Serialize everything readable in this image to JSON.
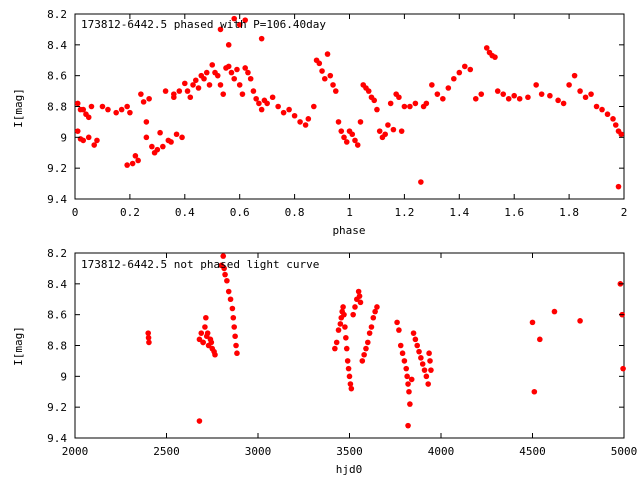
{
  "marker_color": "#ff0000",
  "chart_data": [
    {
      "type": "scatter",
      "title": "173812-6442.5 phased with P=106.40day",
      "xlabel": "phase",
      "ylabel": "I[mag]",
      "xlim": [
        0,
        2
      ],
      "ylim": [
        9.4,
        8.2
      ],
      "y_inverted": true,
      "xticks": [
        "0",
        "0.2",
        "0.4",
        "0.6",
        "0.8",
        "1",
        "1.2",
        "1.4",
        "1.6",
        "1.8",
        "2"
      ],
      "yticks": [
        "8.2",
        "8.4",
        "8.6",
        "8.8",
        "9",
        "9.2",
        "9.4"
      ],
      "grid": false,
      "marker": "filled-circle",
      "series": [
        {
          "points": [
            [
              0.01,
              8.78
            ],
            [
              0.02,
              8.82
            ],
            [
              0.01,
              8.96
            ],
            [
              0.02,
              9.01
            ],
            [
              0.03,
              8.82
            ],
            [
              0.04,
              8.85
            ],
            [
              0.03,
              9.02
            ],
            [
              0.05,
              9.0
            ],
            [
              0.06,
              8.8
            ],
            [
              0.07,
              9.05
            ],
            [
              0.08,
              9.02
            ],
            [
              0.05,
              8.87
            ],
            [
              0.1,
              8.8
            ],
            [
              0.12,
              8.82
            ],
            [
              0.15,
              8.84
            ],
            [
              0.17,
              8.82
            ],
            [
              0.19,
              8.8
            ],
            [
              0.2,
              8.84
            ],
            [
              0.19,
              9.18
            ],
            [
              0.21,
              9.17
            ],
            [
              0.22,
              9.12
            ],
            [
              0.23,
              9.15
            ],
            [
              0.25,
              8.77
            ],
            [
              0.24,
              8.72
            ],
            [
              0.26,
              8.9
            ],
            [
              0.26,
              9.0
            ],
            [
              0.27,
              8.75
            ],
            [
              0.28,
              9.06
            ],
            [
              0.29,
              9.1
            ],
            [
              0.3,
              9.08
            ],
            [
              0.31,
              8.97
            ],
            [
              0.32,
              9.06
            ],
            [
              0.33,
              8.7
            ],
            [
              0.34,
              9.02
            ],
            [
              0.35,
              9.03
            ],
            [
              0.36,
              8.74
            ],
            [
              0.37,
              8.98
            ],
            [
              0.38,
              8.7
            ],
            [
              0.39,
              9.0
            ],
            [
              0.4,
              8.65
            ],
            [
              0.41,
              8.7
            ],
            [
              0.42,
              8.74
            ],
            [
              0.43,
              8.66
            ],
            [
              0.44,
              8.63
            ],
            [
              0.45,
              8.68
            ],
            [
              0.46,
              8.6
            ],
            [
              0.47,
              8.62
            ],
            [
              0.48,
              8.58
            ],
            [
              0.49,
              8.66
            ],
            [
              0.5,
              8.53
            ],
            [
              0.51,
              8.58
            ],
            [
              0.52,
              8.6
            ],
            [
              0.53,
              8.66
            ],
            [
              0.54,
              8.72
            ],
            [
              0.55,
              8.55
            ],
            [
              0.56,
              8.54
            ],
            [
              0.57,
              8.58
            ],
            [
              0.58,
              8.62
            ],
            [
              0.59,
              8.56
            ],
            [
              0.6,
              8.66
            ],
            [
              0.61,
              8.72
            ],
            [
              0.62,
              8.55
            ],
            [
              0.63,
              8.58
            ],
            [
              0.64,
              8.62
            ],
            [
              0.65,
              8.7
            ],
            [
              0.66,
              8.75
            ],
            [
              0.67,
              8.78
            ],
            [
              0.68,
              8.82
            ],
            [
              0.69,
              8.76
            ],
            [
              0.7,
              8.78
            ],
            [
              0.72,
              8.74
            ],
            [
              0.74,
              8.8
            ],
            [
              0.76,
              8.84
            ],
            [
              0.78,
              8.82
            ],
            [
              0.8,
              8.86
            ],
            [
              0.82,
              8.9
            ],
            [
              0.84,
              8.92
            ],
            [
              0.85,
              8.88
            ],
            [
              0.87,
              8.8
            ],
            [
              0.88,
              8.5
            ],
            [
              0.89,
              8.52
            ],
            [
              0.9,
              8.57
            ],
            [
              0.91,
              8.62
            ],
            [
              0.92,
              8.46
            ],
            [
              0.93,
              8.6
            ],
            [
              0.94,
              8.66
            ],
            [
              0.95,
              8.7
            ],
            [
              0.96,
              8.9
            ],
            [
              0.97,
              8.96
            ],
            [
              0.98,
              9.0
            ],
            [
              0.99,
              9.03
            ],
            [
              1.0,
              8.96
            ],
            [
              1.01,
              8.98
            ],
            [
              1.02,
              9.02
            ],
            [
              1.03,
              9.05
            ],
            [
              1.04,
              8.9
            ],
            [
              1.05,
              8.66
            ],
            [
              1.06,
              8.68
            ],
            [
              1.07,
              8.7
            ],
            [
              1.08,
              8.74
            ],
            [
              1.09,
              8.76
            ],
            [
              1.1,
              8.82
            ],
            [
              1.11,
              8.96
            ],
            [
              1.12,
              9.0
            ],
            [
              1.13,
              8.98
            ],
            [
              1.14,
              8.92
            ],
            [
              1.15,
              8.78
            ],
            [
              1.16,
              8.95
            ],
            [
              1.17,
              8.72
            ],
            [
              1.18,
              8.74
            ],
            [
              1.19,
              8.96
            ],
            [
              1.2,
              8.8
            ],
            [
              1.22,
              8.8
            ],
            [
              1.24,
              8.78
            ],
            [
              1.26,
              9.29
            ],
            [
              1.27,
              8.8
            ],
            [
              1.28,
              8.78
            ],
            [
              1.3,
              8.66
            ],
            [
              1.32,
              8.72
            ],
            [
              1.34,
              8.75
            ],
            [
              1.36,
              8.68
            ],
            [
              1.38,
              8.62
            ],
            [
              1.4,
              8.58
            ],
            [
              1.42,
              8.54
            ],
            [
              1.44,
              8.56
            ],
            [
              1.46,
              8.75
            ],
            [
              1.48,
              8.72
            ],
            [
              1.5,
              8.42
            ],
            [
              1.51,
              8.45
            ],
            [
              1.52,
              8.47
            ],
            [
              1.53,
              8.48
            ],
            [
              1.54,
              8.7
            ],
            [
              1.56,
              8.72
            ],
            [
              1.58,
              8.75
            ],
            [
              1.6,
              8.73
            ],
            [
              1.62,
              8.75
            ],
            [
              1.65,
              8.74
            ],
            [
              1.68,
              8.66
            ],
            [
              1.7,
              8.72
            ],
            [
              1.73,
              8.73
            ],
            [
              1.76,
              8.76
            ],
            [
              1.78,
              8.78
            ],
            [
              1.8,
              8.66
            ],
            [
              1.82,
              8.6
            ],
            [
              1.84,
              8.7
            ],
            [
              1.86,
              8.74
            ],
            [
              1.88,
              8.72
            ],
            [
              1.9,
              8.8
            ],
            [
              1.92,
              8.82
            ],
            [
              1.94,
              8.85
            ],
            [
              1.96,
              8.88
            ],
            [
              1.97,
              8.92
            ],
            [
              1.98,
              8.96
            ],
            [
              1.99,
              8.98
            ],
            [
              1.98,
              9.32
            ],
            [
              0.36,
              8.72
            ],
            [
              0.53,
              8.3
            ],
            [
              0.58,
              8.23
            ],
            [
              0.6,
              8.27
            ],
            [
              0.62,
              8.24
            ],
            [
              0.68,
              8.36
            ],
            [
              0.56,
              8.4
            ]
          ]
        }
      ]
    },
    {
      "type": "scatter",
      "title": "173812-6442.5 not phased light curve",
      "xlabel": "hjd0",
      "ylabel": "I[mag]",
      "xlim": [
        2000,
        5000
      ],
      "ylim": [
        9.4,
        8.2
      ],
      "y_inverted": true,
      "xticks": [
        "2000",
        "2500",
        "3000",
        "3500",
        "4000",
        "4500",
        "5000"
      ],
      "yticks": [
        "8.2",
        "8.4",
        "8.6",
        "8.8",
        "9",
        "9.2",
        "9.4"
      ],
      "grid": false,
      "marker": "filled-circle",
      "series": [
        {
          "points": [
            [
              2400,
              8.72
            ],
            [
              2402,
              8.75
            ],
            [
              2404,
              8.78
            ],
            [
              2680,
              8.76
            ],
            [
              2690,
              8.72
            ],
            [
              2700,
              8.78
            ],
            [
              2710,
              8.68
            ],
            [
              2720,
              8.74
            ],
            [
              2730,
              8.8
            ],
            [
              2740,
              8.76
            ],
            [
              2750,
              8.82
            ],
            [
              2760,
              8.84
            ],
            [
              2680,
              9.29
            ],
            [
              2700,
              8.78
            ],
            [
              2715,
              8.62
            ],
            [
              2725,
              8.72
            ],
            [
              2745,
              8.78
            ],
            [
              2765,
              8.86
            ],
            [
              2800,
              8.28
            ],
            [
              2810,
              8.22
            ],
            [
              2815,
              8.3
            ],
            [
              2820,
              8.34
            ],
            [
              2830,
              8.38
            ],
            [
              2840,
              8.45
            ],
            [
              2850,
              8.5
            ],
            [
              2860,
              8.56
            ],
            [
              2865,
              8.62
            ],
            [
              2870,
              8.68
            ],
            [
              2875,
              8.74
            ],
            [
              2880,
              8.8
            ],
            [
              2885,
              8.85
            ],
            [
              3420,
              8.82
            ],
            [
              3430,
              8.78
            ],
            [
              3440,
              8.7
            ],
            [
              3450,
              8.66
            ],
            [
              3455,
              8.62
            ],
            [
              3460,
              8.58
            ],
            [
              3465,
              8.55
            ],
            [
              3470,
              8.6
            ],
            [
              3475,
              8.68
            ],
            [
              3480,
              8.75
            ],
            [
              3485,
              8.82
            ],
            [
              3490,
              8.9
            ],
            [
              3495,
              8.95
            ],
            [
              3500,
              9.0
            ],
            [
              3505,
              9.05
            ],
            [
              3510,
              9.08
            ],
            [
              3520,
              8.6
            ],
            [
              3530,
              8.55
            ],
            [
              3540,
              8.5
            ],
            [
              3550,
              8.45
            ],
            [
              3555,
              8.48
            ],
            [
              3560,
              8.52
            ],
            [
              3570,
              8.9
            ],
            [
              3580,
              8.86
            ],
            [
              3590,
              8.82
            ],
            [
              3600,
              8.78
            ],
            [
              3610,
              8.72
            ],
            [
              3620,
              8.68
            ],
            [
              3630,
              8.62
            ],
            [
              3640,
              8.58
            ],
            [
              3650,
              8.55
            ],
            [
              3760,
              8.65
            ],
            [
              3770,
              8.7
            ],
            [
              3780,
              8.8
            ],
            [
              3790,
              8.85
            ],
            [
              3800,
              8.9
            ],
            [
              3810,
              8.95
            ],
            [
              3815,
              9.0
            ],
            [
              3820,
              9.05
            ],
            [
              3825,
              9.1
            ],
            [
              3830,
              9.18
            ],
            [
              3820,
              9.32
            ],
            [
              3840,
              9.02
            ],
            [
              3850,
              8.72
            ],
            [
              3860,
              8.76
            ],
            [
              3870,
              8.8
            ],
            [
              3880,
              8.84
            ],
            [
              3890,
              8.88
            ],
            [
              3900,
              8.92
            ],
            [
              3910,
              8.96
            ],
            [
              3920,
              9.0
            ],
            [
              3930,
              9.05
            ],
            [
              3935,
              8.85
            ],
            [
              3940,
              8.9
            ],
            [
              3945,
              8.96
            ],
            [
              4500,
              8.65
            ],
            [
              4510,
              9.1
            ],
            [
              4540,
              8.76
            ],
            [
              4620,
              8.58
            ],
            [
              4760,
              8.64
            ],
            [
              4980,
              8.4
            ],
            [
              4990,
              8.6
            ],
            [
              4995,
              8.95
            ]
          ]
        }
      ]
    }
  ]
}
